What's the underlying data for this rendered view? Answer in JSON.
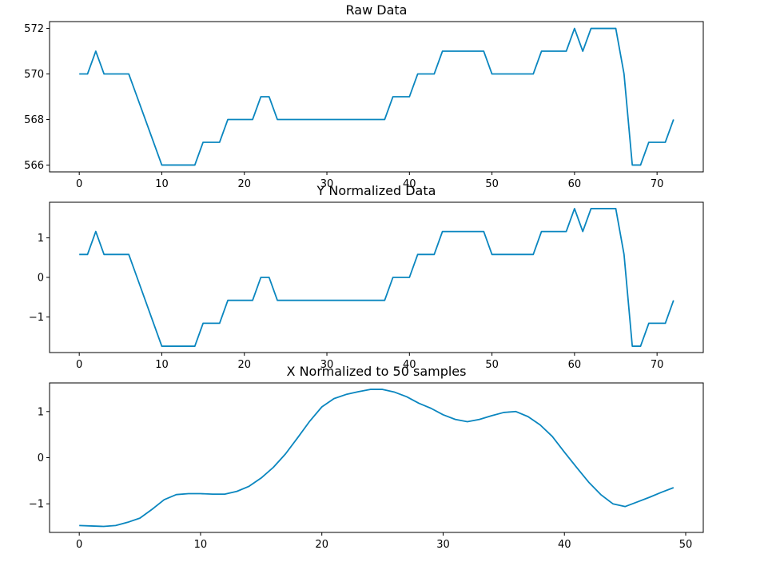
{
  "chart_data": [
    {
      "type": "line",
      "title": "Raw Data",
      "xlim": [
        -3.6,
        75.6
      ],
      "ylim": [
        565.7,
        572.3
      ],
      "xticks": [
        0,
        10,
        20,
        30,
        40,
        50,
        60,
        70
      ],
      "xtick_labels": [
        "0",
        "10",
        "20",
        "30",
        "40",
        "50",
        "60",
        "70"
      ],
      "yticks": [
        566,
        568,
        570,
        572
      ],
      "ytick_labels": [
        "566",
        "568",
        "570",
        "572"
      ],
      "grid": false,
      "color": "#0a86bf",
      "series": [
        {
          "x": [
            0,
            1,
            2,
            3,
            4,
            5,
            6,
            7,
            8,
            9,
            10,
            11,
            12,
            13,
            14,
            15,
            16,
            17,
            18,
            19,
            20,
            21,
            22,
            23,
            24,
            25,
            26,
            27,
            28,
            29,
            30,
            31,
            32,
            33,
            34,
            35,
            36,
            37,
            38,
            39,
            40,
            41,
            42,
            43,
            44,
            45,
            46,
            47,
            48,
            49,
            50,
            51,
            52,
            53,
            54,
            55,
            56,
            57,
            58,
            59,
            60,
            61,
            62,
            63,
            64,
            65,
            66,
            67,
            68,
            69,
            70,
            71,
            72
          ],
          "y": [
            570,
            570,
            571,
            570,
            570,
            570,
            570,
            569,
            568,
            567,
            566,
            566,
            566,
            566,
            566,
            567,
            567,
            567,
            568,
            568,
            568,
            568,
            569,
            569,
            568,
            568,
            568,
            568,
            568,
            568,
            568,
            568,
            568,
            568,
            568,
            568,
            568,
            568,
            569,
            569,
            569,
            570,
            570,
            570,
            571,
            571,
            571,
            571,
            571,
            571,
            570,
            570,
            570,
            570,
            570,
            570,
            571,
            571,
            571,
            571,
            572,
            571,
            572,
            572,
            572,
            572,
            570,
            566,
            566,
            567,
            567,
            567,
            568
          ]
        }
      ]
    },
    {
      "type": "line",
      "title": "Y Normalized Data",
      "xlim": [
        -3.6,
        75.6
      ],
      "ylim": [
        -1.9,
        1.9
      ],
      "xticks": [
        0,
        10,
        20,
        30,
        40,
        50,
        60,
        70
      ],
      "xtick_labels": [
        "0",
        "10",
        "20",
        "30",
        "40",
        "50",
        "60",
        "70"
      ],
      "yticks": [
        -1,
        0,
        1
      ],
      "ytick_labels": [
        "−1",
        "0",
        "1"
      ],
      "grid": false,
      "color": "#0a86bf",
      "series": [
        {
          "x": [
            0,
            1,
            2,
            3,
            4,
            5,
            6,
            7,
            8,
            9,
            10,
            11,
            12,
            13,
            14,
            15,
            16,
            17,
            18,
            19,
            20,
            21,
            22,
            23,
            24,
            25,
            26,
            27,
            28,
            29,
            30,
            31,
            32,
            33,
            34,
            35,
            36,
            37,
            38,
            39,
            40,
            41,
            42,
            43,
            44,
            45,
            46,
            47,
            48,
            49,
            50,
            51,
            52,
            53,
            54,
            55,
            56,
            57,
            58,
            59,
            60,
            61,
            62,
            63,
            64,
            65,
            66,
            67,
            68,
            69,
            70,
            71,
            72
          ],
          "y": [
            0.58,
            0.58,
            1.16,
            0.58,
            0.58,
            0.58,
            0.58,
            0,
            -0.58,
            -1.16,
            -1.74,
            -1.74,
            -1.74,
            -1.74,
            -1.74,
            -1.16,
            -1.16,
            -1.16,
            -0.58,
            -0.58,
            -0.58,
            -0.58,
            0,
            0,
            -0.58,
            -0.58,
            -0.58,
            -0.58,
            -0.58,
            -0.58,
            -0.58,
            -0.58,
            -0.58,
            -0.58,
            -0.58,
            -0.58,
            -0.58,
            -0.58,
            0,
            0,
            0,
            0.58,
            0.58,
            0.58,
            1.16,
            1.16,
            1.16,
            1.16,
            1.16,
            1.16,
            0.58,
            0.58,
            0.58,
            0.58,
            0.58,
            0.58,
            1.16,
            1.16,
            1.16,
            1.16,
            1.74,
            1.16,
            1.74,
            1.74,
            1.74,
            1.74,
            0.58,
            -1.74,
            -1.74,
            -1.16,
            -1.16,
            -1.16,
            -0.58
          ]
        }
      ]
    },
    {
      "type": "line",
      "title": "X Normalized to 50 samples",
      "xlim": [
        -2.45,
        51.45
      ],
      "ylim": [
        -1.62,
        1.62
      ],
      "xticks": [
        0,
        10,
        20,
        30,
        40,
        50
      ],
      "xtick_labels": [
        "0",
        "10",
        "20",
        "30",
        "40",
        "50"
      ],
      "yticks": [
        -1,
        0,
        1
      ],
      "ytick_labels": [
        "−1",
        "0",
        "1"
      ],
      "grid": false,
      "color": "#0a86bf",
      "series": [
        {
          "x": [
            0,
            1,
            2,
            3,
            4,
            5,
            6,
            7,
            8,
            9,
            10,
            11,
            12,
            13,
            14,
            15,
            16,
            17,
            18,
            19,
            20,
            21,
            22,
            23,
            24,
            25,
            26,
            27,
            28,
            29,
            30,
            31,
            32,
            33,
            34,
            35,
            36,
            37,
            38,
            39,
            40,
            41,
            42,
            43,
            44,
            45,
            46,
            47,
            48,
            49
          ],
          "y": [
            -1.47,
            -1.48,
            -1.49,
            -1.47,
            -1.4,
            -1.31,
            -1.12,
            -0.91,
            -0.8,
            -0.78,
            -0.78,
            -0.79,
            -0.79,
            -0.73,
            -0.62,
            -0.44,
            -0.21,
            0.08,
            0.43,
            0.79,
            1.1,
            1.28,
            1.37,
            1.43,
            1.48,
            1.48,
            1.42,
            1.32,
            1.18,
            1.07,
            0.93,
            0.83,
            0.78,
            0.83,
            0.91,
            0.98,
            1.0,
            0.89,
            0.71,
            0.46,
            0.12,
            -0.21,
            -0.53,
            -0.8,
            -1.0,
            -1.06,
            -0.96,
            -0.86,
            -0.75,
            -0.65
          ]
        }
      ]
    }
  ]
}
